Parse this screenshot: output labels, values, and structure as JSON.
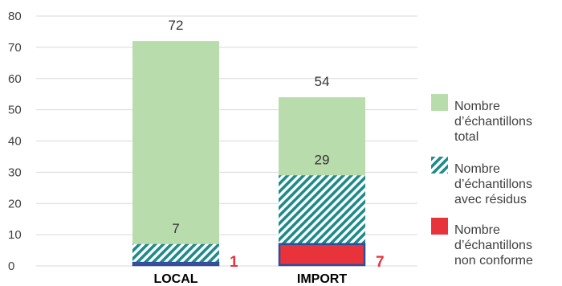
{
  "chart_data": {
    "type": "bar",
    "categories": [
      "LOCAL",
      "IMPORT"
    ],
    "series": [
      {
        "name": "Nombre d’échantillons total",
        "values": [
          72,
          54
        ],
        "pattern": "solid",
        "color": "#b9dcac"
      },
      {
        "name": "Nombre d’échantillons avec résidus",
        "values": [
          7,
          29
        ],
        "pattern": "hatched",
        "color": "#1f8a8a"
      },
      {
        "name": "Nombre d’échantillons non conforme",
        "values": [
          1,
          7
        ],
        "pattern": "solid",
        "color": "#e8333b"
      }
    ],
    "data_labels": {
      "total": [
        "72",
        "54"
      ],
      "residus": [
        "7",
        "29"
      ],
      "non_conforme": [
        "1",
        "7"
      ]
    },
    "legend": {
      "position": "right",
      "entries": [
        [
          "Nombre",
          "d’échantillons",
          "total"
        ],
        [
          "Nombre",
          "d’échantillons",
          "avec résidus"
        ],
        [
          "Nombre",
          "d’échantillons",
          "non conforme"
        ]
      ]
    },
    "yticks": [
      "0",
      "10",
      "20",
      "30",
      "40",
      "50",
      "60",
      "70",
      "80"
    ],
    "ylim": [
      0,
      80
    ],
    "grid": true,
    "colors": {
      "total": "#b9dcac",
      "hatch": "#1f8a8a",
      "non_conforme": "#e8333b",
      "nc_border": "#2a4f9e",
      "nc_label": "#e8333b"
    }
  }
}
